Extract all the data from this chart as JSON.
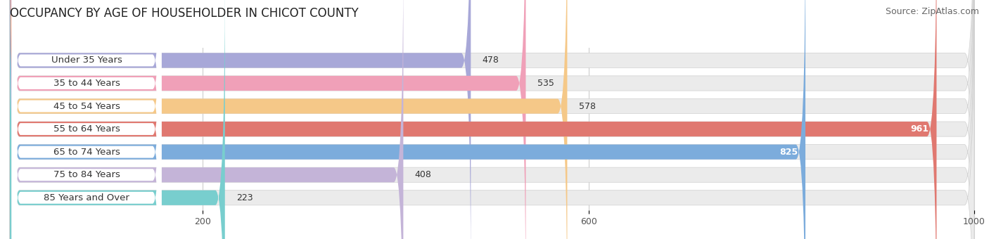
{
  "title": "OCCUPANCY BY AGE OF HOUSEHOLDER IN CHICOT COUNTY",
  "source": "Source: ZipAtlas.com",
  "categories": [
    "Under 35 Years",
    "35 to 44 Years",
    "45 to 54 Years",
    "55 to 64 Years",
    "65 to 74 Years",
    "75 to 84 Years",
    "85 Years and Over"
  ],
  "values": [
    478,
    535,
    578,
    961,
    825,
    408,
    223
  ],
  "bar_colors": [
    "#a8a8d8",
    "#f0a0b8",
    "#f5c888",
    "#e07870",
    "#7cacdc",
    "#c4b4d8",
    "#78cece"
  ],
  "bar_bg_color": "#ebebeb",
  "xmin": 0,
  "xmax": 1050,
  "xlim_display": 1000,
  "xticks": [
    200,
    600,
    1000
  ],
  "title_fontsize": 12,
  "source_fontsize": 9,
  "label_fontsize": 9.5,
  "value_fontsize": 9,
  "figsize": [
    14.06,
    3.4
  ],
  "dpi": 100
}
